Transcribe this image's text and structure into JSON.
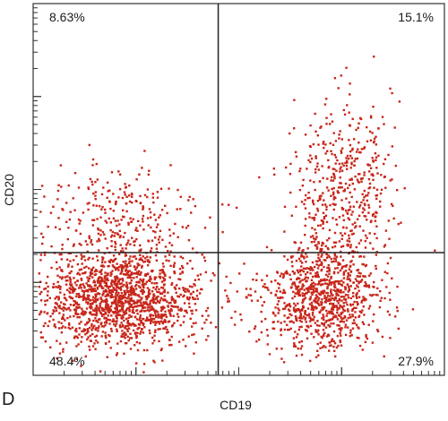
{
  "panel_label": "D",
  "colors": {
    "dots": "#c8261a",
    "axis": "#333333",
    "gate": "#222222",
    "background": "#ffffff"
  },
  "chart_data": {
    "type": "scatter",
    "plot_kind": "flow-cytometry quadrant dot plot",
    "xlabel": "CD19",
    "ylabel": "CD20",
    "scale": "log",
    "xlim": [
      0,
      1
    ],
    "ylim": [
      0,
      1
    ],
    "grid": false,
    "gates": {
      "x": 0.45,
      "y": 0.33
    },
    "quadrants": [
      {
        "position": "top-left",
        "label": "8.63%",
        "value": 8.63
      },
      {
        "position": "top-right",
        "label": "15.1%",
        "value": 15.1
      },
      {
        "position": "bottom-left",
        "label": "48.4%",
        "value": 48.4
      },
      {
        "position": "bottom-right",
        "label": "27.9%",
        "value": 27.9
      }
    ],
    "populations": [
      {
        "region": "bottom-left",
        "center": [
          0.21,
          0.21
        ],
        "spread": [
          0.1,
          0.065
        ],
        "fraction": 0.484
      },
      {
        "region": "top-left",
        "center": [
          0.2,
          0.43
        ],
        "spread": [
          0.11,
          0.075
        ],
        "fraction": 0.0863
      },
      {
        "region": "bottom-right",
        "center": [
          0.7,
          0.21
        ],
        "spread": [
          0.07,
          0.07
        ],
        "fraction": 0.279
      },
      {
        "region": "top-right",
        "center": [
          0.75,
          0.5
        ],
        "spread": [
          0.06,
          0.12
        ],
        "fraction": 0.151
      }
    ]
  }
}
